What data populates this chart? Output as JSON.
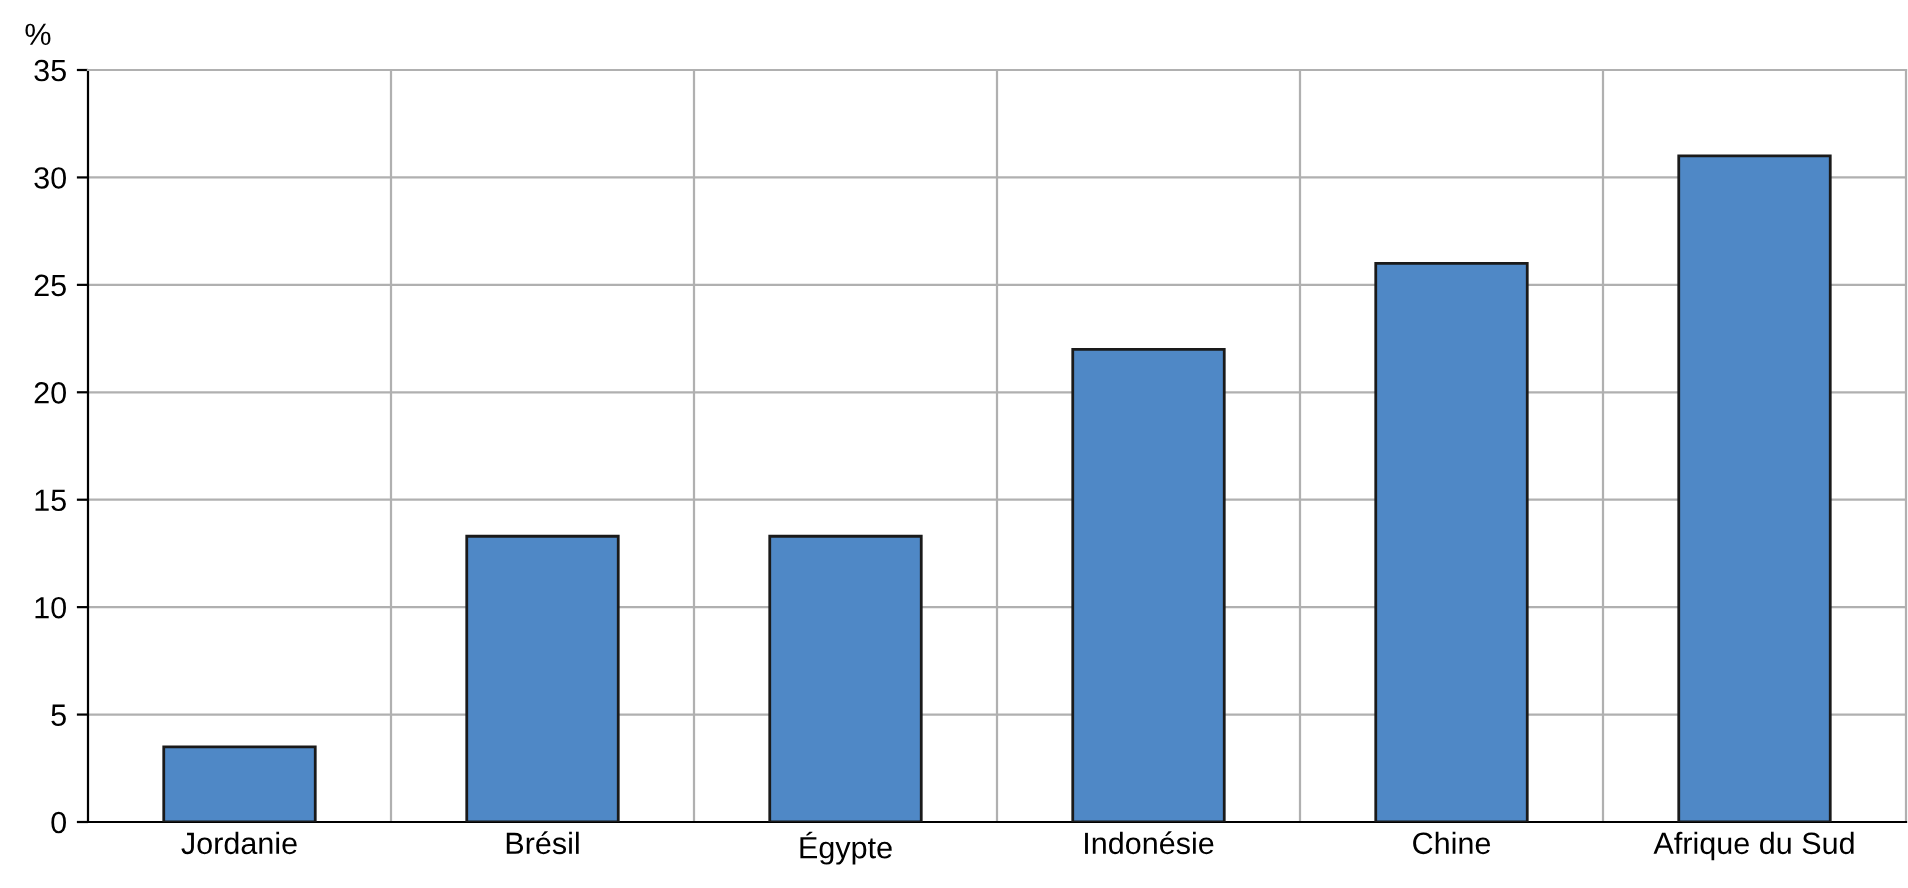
{
  "chart_data": {
    "type": "bar",
    "ylabel": "%",
    "categories": [
      "Jordanie",
      "Brésil",
      "Égypte",
      "Indonésie",
      "Chine",
      "Afrique du Sud"
    ],
    "values": [
      3.5,
      13.3,
      13.3,
      22,
      26,
      31
    ],
    "color": "#4f88c6",
    "ylim": [
      0,
      35
    ],
    "yticks": [
      0,
      5,
      10,
      15,
      20,
      25,
      30,
      35
    ],
    "grid": true
  }
}
